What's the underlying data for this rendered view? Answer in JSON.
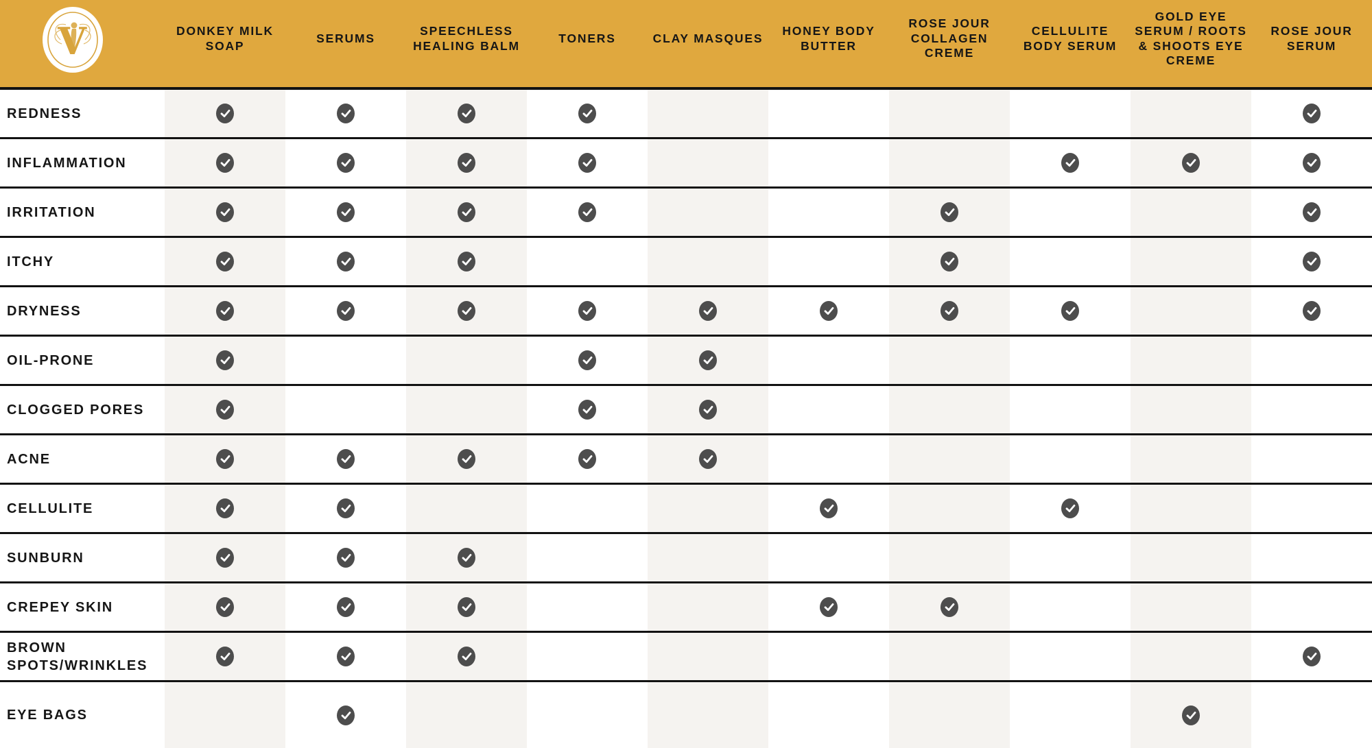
{
  "colors": {
    "header_bg": "#E0A83E",
    "shaded_column": "#F5F3F0",
    "row_border": "#121212",
    "check_circle": "#4D4D4D",
    "text": "#161616",
    "logo_gold": "#D8A43C",
    "logo_bg": "#FFFFFF"
  },
  "logo": {
    "letter": "V"
  },
  "chart_data": {
    "type": "table",
    "columns": [
      "DONKEY MILK SOAP",
      "SERUMS",
      "SPEECHLESS HEALING BALM",
      "TONERS",
      "CLAY MASQUES",
      "HONEY BODY BUTTER",
      "ROSE JOUR COLLAGEN CREME",
      "CELLULITE BODY SERUM",
      "GOLD EYE SERUM / ROOTS & SHOOTS EYE CREME",
      "ROSE JOUR SERUM"
    ],
    "row_labels": [
      "REDNESS",
      "INFLAMMATION",
      "IRRITATION",
      "ITCHY",
      "DRYNESS",
      "OIL-PRONE",
      "CLOGGED PORES",
      "ACNE",
      "CELLULITE",
      "SUNBURN",
      "CREPEY SKIN",
      "BROWN SPOTS/WRINKLES",
      "EYE BAGS"
    ],
    "matrix": [
      [
        1,
        1,
        1,
        1,
        0,
        0,
        0,
        0,
        0,
        1
      ],
      [
        1,
        1,
        1,
        1,
        0,
        0,
        0,
        1,
        1,
        1
      ],
      [
        1,
        1,
        1,
        1,
        0,
        0,
        1,
        0,
        0,
        1
      ],
      [
        1,
        1,
        1,
        0,
        0,
        0,
        1,
        0,
        0,
        1
      ],
      [
        1,
        1,
        1,
        1,
        1,
        1,
        1,
        1,
        0,
        1
      ],
      [
        1,
        0,
        0,
        1,
        1,
        0,
        0,
        0,
        0,
        0
      ],
      [
        1,
        0,
        0,
        1,
        1,
        0,
        0,
        0,
        0,
        0
      ],
      [
        1,
        1,
        1,
        1,
        1,
        0,
        0,
        0,
        0,
        0
      ],
      [
        1,
        1,
        0,
        0,
        0,
        1,
        0,
        1,
        0,
        0
      ],
      [
        1,
        1,
        1,
        0,
        0,
        0,
        0,
        0,
        0,
        0
      ],
      [
        1,
        1,
        1,
        0,
        0,
        1,
        1,
        0,
        0,
        0
      ],
      [
        1,
        1,
        1,
        0,
        0,
        0,
        0,
        0,
        0,
        1
      ],
      [
        0,
        1,
        0,
        0,
        0,
        0,
        0,
        0,
        1,
        0
      ]
    ]
  }
}
